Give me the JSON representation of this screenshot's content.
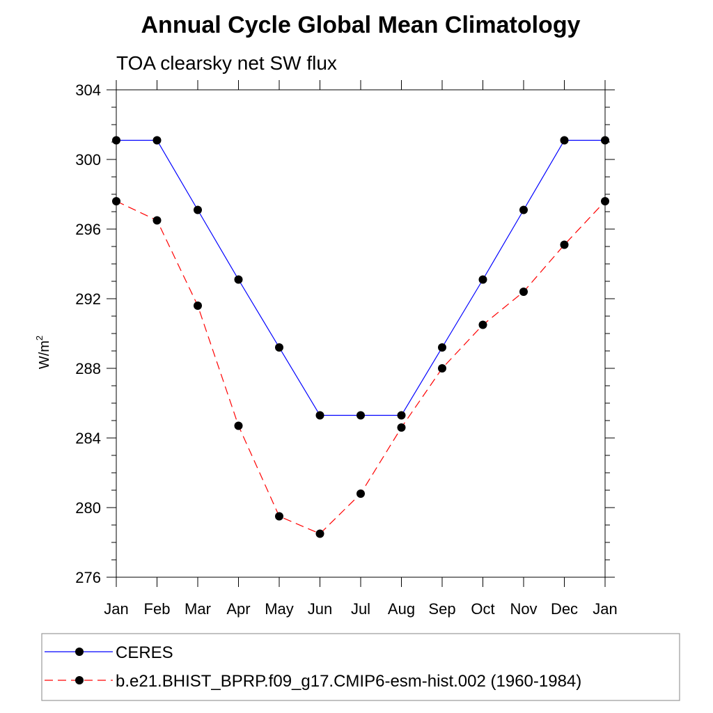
{
  "chart_data": {
    "type": "line",
    "title": "Annual Cycle Global Mean Climatology",
    "subtitle": "TOA clearsky net SW flux",
    "ylabel": "W/m",
    "ylabel_superscript": "2",
    "xlabel": "",
    "ylim": [
      276,
      304
    ],
    "yticks": [
      "276",
      "280",
      "284",
      "288",
      "292",
      "296",
      "300",
      "304"
    ],
    "ytick_values": [
      276,
      280,
      284,
      288,
      292,
      296,
      300,
      304
    ],
    "categories": [
      "Jan",
      "Feb",
      "Mar",
      "Apr",
      "May",
      "Jun",
      "Jul",
      "Aug",
      "Sep",
      "Oct",
      "Nov",
      "Dec",
      "Jan"
    ],
    "grid": false,
    "legend_position": "bottom",
    "series": [
      {
        "name": "CERES",
        "color": "#0000ff",
        "dash": "solid",
        "marker_color": "#000000",
        "values": [
          301.1,
          301.1,
          297.1,
          293.1,
          289.2,
          285.3,
          285.3,
          285.3,
          289.2,
          293.1,
          297.1,
          301.1,
          301.1
        ]
      },
      {
        "name": "b.e21.BHIST_BPRP.f09_g17.CMIP6-esm-hist.002 (1960-1984)",
        "color": "#ff0000",
        "dash": "dashed",
        "marker_color": "#000000",
        "values": [
          297.6,
          296.5,
          291.6,
          284.7,
          279.5,
          278.5,
          280.8,
          284.6,
          288.0,
          290.5,
          292.4,
          295.1,
          297.6
        ]
      }
    ]
  }
}
